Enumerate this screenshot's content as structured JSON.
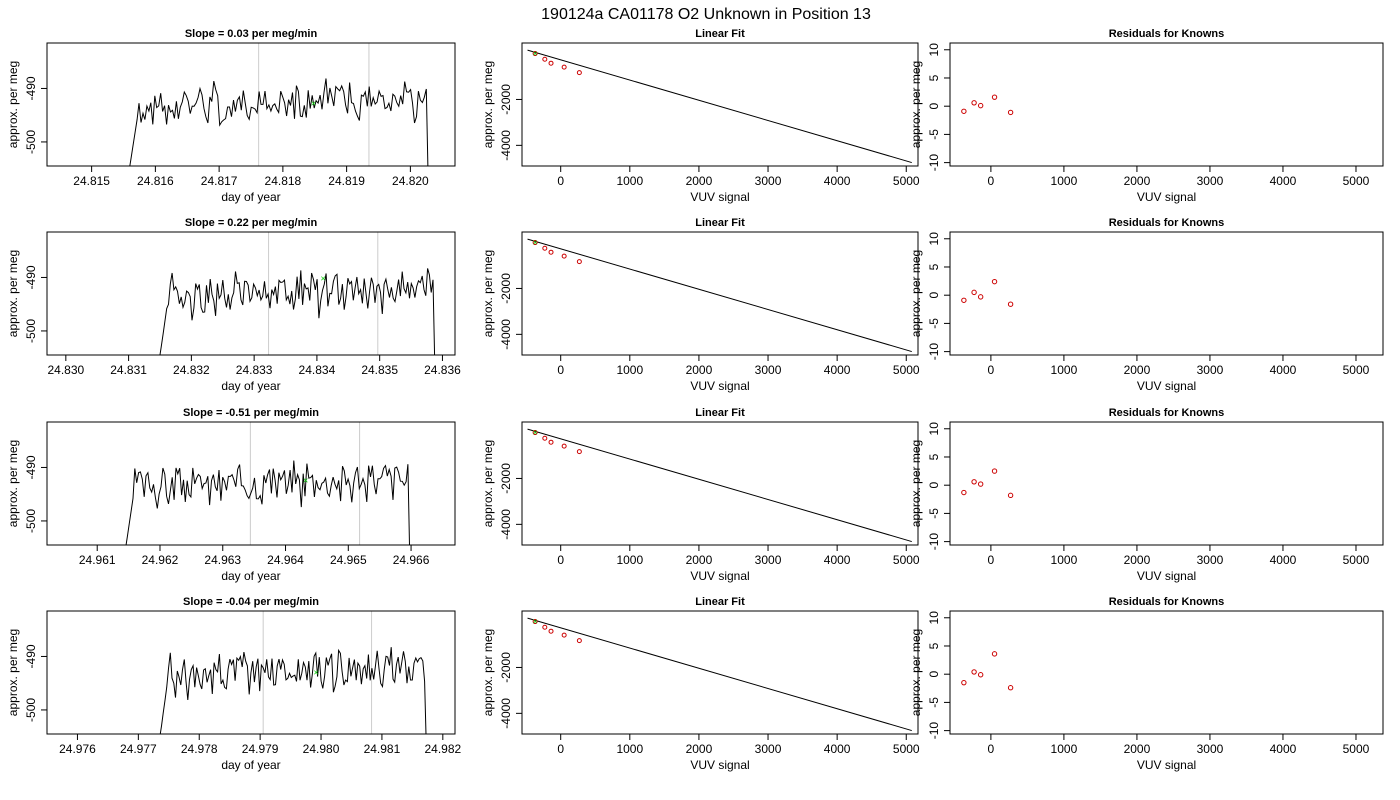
{
  "page_title": "190124a     CA01178   O2 Unknown in Position  13",
  "colors": {
    "trace": "#000000",
    "marker": "#00cc00",
    "residual": "#cc0000",
    "window": "#cccccc",
    "fit": "#000000"
  },
  "chart_data": [
    {
      "type": "line",
      "panel": "trace",
      "title": "Slope =  0.03  per meg/min",
      "xlabel": "day of year",
      "ylabel": "approx. per meg",
      "xlim": [
        24.8143,
        24.8207
      ],
      "ylim": [
        -504.5,
        -481.5
      ],
      "xticks": [
        "24.815",
        "24.816",
        "24.817",
        "24.818",
        "24.819",
        "24.820"
      ],
      "yticks": [
        "-490",
        "-500"
      ],
      "window": [
        24.81762,
        24.81935
      ],
      "start": 24.81562,
      "end": 24.82025,
      "seed": 1,
      "marker": {
        "x": 24.81848,
        "y": -492.8
      }
    },
    {
      "type": "line",
      "panel": "fit",
      "title": "Linear Fit",
      "xlabel": "VUV signal",
      "ylabel": "approx. per meg",
      "xlim": [
        -560,
        5170
      ],
      "ylim": [
        -4900,
        460
      ],
      "xticks": [
        "0",
        "1000",
        "2000",
        "3000",
        "4000",
        "5000"
      ],
      "yticks": [
        "-2000",
        "-4000"
      ],
      "line": [
        [
          -480,
          150
        ],
        [
          5080,
          -4750
        ]
      ],
      "points": [
        [
          -370,
          0
        ],
        [
          -230,
          -250
        ],
        [
          -140,
          -420
        ],
        [
          50,
          -590
        ],
        [
          270,
          -830
        ]
      ],
      "marker": [
        -370,
        0
      ]
    },
    {
      "type": "scatter",
      "panel": "residuals",
      "title": "Residuals for Knowns",
      "xlabel": "VUV signal",
      "ylabel": "approx. per meg",
      "xlim": [
        -560,
        5370
      ],
      "ylim": [
        -10.6,
        11.2
      ],
      "xticks": [
        "0",
        "1000",
        "2000",
        "3000",
        "4000",
        "5000"
      ],
      "yticks": [
        "-10",
        "-5",
        "0",
        "5",
        "10"
      ],
      "points": [
        [
          -370,
          -0.9
        ],
        [
          -230,
          0.6
        ],
        [
          -140,
          0.1
        ],
        [
          50,
          1.6
        ],
        [
          270,
          -1.1
        ]
      ]
    },
    {
      "type": "line",
      "panel": "trace",
      "title": "Slope =  0.22  per meg/min",
      "xlabel": "day of year",
      "ylabel": "approx. per meg",
      "xlim": [
        24.8297,
        24.8362
      ],
      "ylim": [
        -504.5,
        -481.5
      ],
      "xticks": [
        "24.830",
        "24.831",
        "24.832",
        "24.833",
        "24.834",
        "24.835",
        "24.836"
      ],
      "yticks": [
        "-490",
        "-500"
      ],
      "window": [
        24.83323,
        24.83497
      ],
      "start": 24.83152,
      "end": 24.83585,
      "seed": 2,
      "marker": {
        "x": 24.8341,
        "y": -490.2
      }
    },
    {
      "type": "line",
      "panel": "fit",
      "title": "Linear Fit",
      "xlabel": "VUV signal",
      "ylabel": "approx. per meg",
      "xlim": [
        -560,
        5170
      ],
      "ylim": [
        -4900,
        460
      ],
      "xticks": [
        "0",
        "1000",
        "2000",
        "3000",
        "4000",
        "5000"
      ],
      "yticks": [
        "-2000",
        "-4000"
      ],
      "line": [
        [
          -480,
          150
        ],
        [
          5080,
          -4750
        ]
      ],
      "points": [
        [
          -370,
          0
        ],
        [
          -230,
          -250
        ],
        [
          -140,
          -420
        ],
        [
          50,
          -590
        ],
        [
          270,
          -830
        ]
      ],
      "marker": [
        -370,
        0
      ]
    },
    {
      "type": "scatter",
      "panel": "residuals",
      "title": "Residuals for Knowns",
      "xlabel": "VUV signal",
      "ylabel": "approx. per meg",
      "xlim": [
        -560,
        5370
      ],
      "ylim": [
        -10.6,
        11.2
      ],
      "xticks": [
        "0",
        "1000",
        "2000",
        "3000",
        "4000",
        "5000"
      ],
      "yticks": [
        "-10",
        "-5",
        "0",
        "5",
        "10"
      ],
      "points": [
        [
          -370,
          -0.9
        ],
        [
          -230,
          0.5
        ],
        [
          -140,
          -0.3
        ],
        [
          50,
          2.4
        ],
        [
          270,
          -1.6
        ]
      ]
    },
    {
      "type": "line",
      "panel": "trace",
      "title": "Slope =  -0.51  per meg/min",
      "xlabel": "day of year",
      "ylabel": "approx. per meg",
      "xlim": [
        24.9602,
        24.9667
      ],
      "ylim": [
        -504.5,
        -481.5
      ],
      "xticks": [
        "24.961",
        "24.962",
        "24.963",
        "24.964",
        "24.965",
        "24.966"
      ],
      "yticks": [
        "-490",
        "-500"
      ],
      "window": [
        24.96344,
        24.96518
      ],
      "start": 24.96148,
      "end": 24.96595,
      "seed": 3,
      "marker": {
        "x": 24.96432,
        "y": -492.4
      }
    },
    {
      "type": "line",
      "panel": "fit",
      "title": "Linear Fit",
      "xlabel": "VUV signal",
      "ylabel": "approx. per meg",
      "xlim": [
        -560,
        5170
      ],
      "ylim": [
        -4900,
        460
      ],
      "xticks": [
        "0",
        "1000",
        "2000",
        "3000",
        "4000",
        "5000"
      ],
      "yticks": [
        "-2000",
        "-4000"
      ],
      "line": [
        [
          -480,
          150
        ],
        [
          5080,
          -4750
        ]
      ],
      "points": [
        [
          -370,
          0
        ],
        [
          -230,
          -250
        ],
        [
          -140,
          -420
        ],
        [
          50,
          -590
        ],
        [
          270,
          -830
        ]
      ],
      "marker": [
        -370,
        0
      ]
    },
    {
      "type": "scatter",
      "panel": "residuals",
      "title": "Residuals for Knowns",
      "xlabel": "VUV signal",
      "ylabel": "approx. per meg",
      "xlim": [
        -560,
        5370
      ],
      "ylim": [
        -10.6,
        11.2
      ],
      "xticks": [
        "0",
        "1000",
        "2000",
        "3000",
        "4000",
        "5000"
      ],
      "yticks": [
        "-10",
        "-5",
        "0",
        "5",
        "10"
      ],
      "points": [
        [
          -370,
          -1.3
        ],
        [
          -230,
          0.6
        ],
        [
          -140,
          0.2
        ],
        [
          50,
          2.5
        ],
        [
          270,
          -1.8
        ]
      ]
    },
    {
      "type": "line",
      "panel": "trace",
      "title": "Slope =  -0.04  per meg/min",
      "xlabel": "day of year",
      "ylabel": "approx. per meg",
      "xlim": [
        24.9755,
        24.9822
      ],
      "ylim": [
        -504.5,
        -481.5
      ],
      "xticks": [
        "24.976",
        "24.977",
        "24.978",
        "24.979",
        "24.980",
        "24.981",
        "24.982"
      ],
      "yticks": [
        "-490",
        "-500"
      ],
      "window": [
        24.97905,
        24.98083
      ],
      "start": 24.97738,
      "end": 24.9817,
      "seed": 4,
      "marker": {
        "x": 24.97992,
        "y": -493.0
      }
    },
    {
      "type": "line",
      "panel": "fit",
      "title": "Linear Fit",
      "xlabel": "VUV signal",
      "ylabel": "approx. per meg",
      "xlim": [
        -560,
        5170
      ],
      "ylim": [
        -4900,
        460
      ],
      "xticks": [
        "0",
        "1000",
        "2000",
        "3000",
        "4000",
        "5000"
      ],
      "yticks": [
        "-2000",
        "-4000"
      ],
      "line": [
        [
          -480,
          150
        ],
        [
          5080,
          -4750
        ]
      ],
      "points": [
        [
          -370,
          0
        ],
        [
          -230,
          -250
        ],
        [
          -140,
          -420
        ],
        [
          50,
          -590
        ],
        [
          270,
          -830
        ]
      ],
      "marker": [
        -370,
        0
      ]
    },
    {
      "type": "scatter",
      "panel": "residuals",
      "title": "Residuals for Knowns",
      "xlabel": "VUV signal",
      "ylabel": "approx. per meg",
      "xlim": [
        -560,
        5370
      ],
      "ylim": [
        -10.6,
        11.2
      ],
      "xticks": [
        "0",
        "1000",
        "2000",
        "3000",
        "4000",
        "5000"
      ],
      "yticks": [
        "-10",
        "-5",
        "0",
        "5",
        "10"
      ],
      "points": [
        [
          -370,
          -1.5
        ],
        [
          -230,
          0.4
        ],
        [
          -140,
          -0.1
        ],
        [
          50,
          3.6
        ],
        [
          270,
          -2.4
        ]
      ]
    }
  ]
}
